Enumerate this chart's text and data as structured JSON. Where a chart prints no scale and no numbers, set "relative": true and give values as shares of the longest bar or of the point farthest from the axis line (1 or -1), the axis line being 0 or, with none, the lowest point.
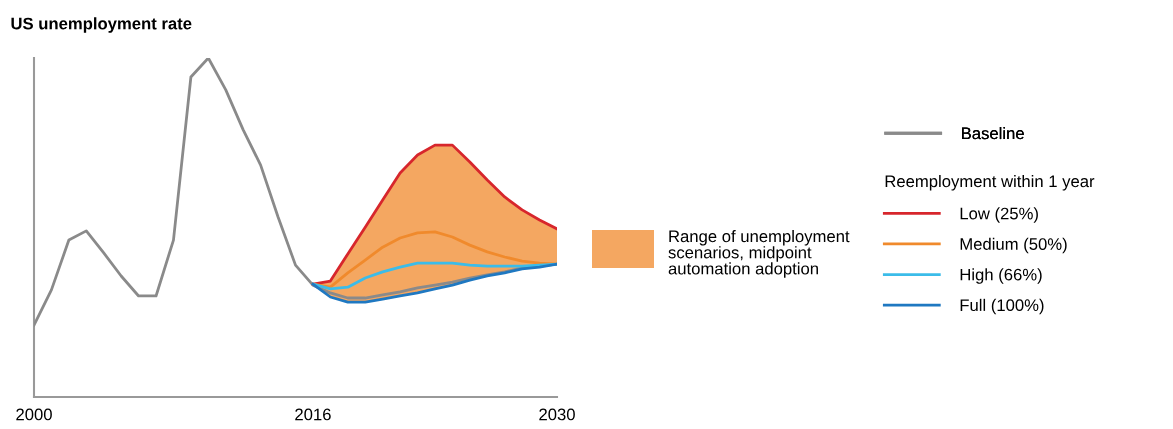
{
  "chart_data": {
    "type": "line",
    "title": "US unemployment rate",
    "relative": true,
    "xlim": [
      2000,
      2030
    ],
    "xticks": [
      2000,
      2016,
      2030
    ],
    "grid": false,
    "legend": "right",
    "marker": "none",
    "line_style": "solid",
    "legend_title": "Reemployment within 1 year",
    "annotations": [
      "Range of unemployment scenarios, midpoint automation adoption"
    ],
    "series": [
      {
        "name": "Baseline",
        "color": "#8a8a8a",
        "x": [
          2000,
          2001,
          2002,
          2003,
          2004,
          2005,
          2006,
          2007,
          2008,
          2009,
          2010,
          2011,
          2012,
          2013,
          2014,
          2015,
          2016,
          2017,
          2018,
          2019,
          2020,
          2021,
          2022,
          2023,
          2024,
          2025,
          2026,
          2027,
          2028,
          2029,
          2030
        ],
        "values": [
          0.212,
          0.316,
          0.463,
          0.49,
          0.425,
          0.357,
          0.298,
          0.298,
          0.463,
          0.944,
          1.0,
          0.906,
          0.788,
          0.684,
          0.531,
          0.389,
          0.33,
          0.307,
          0.292,
          0.292,
          0.301,
          0.31,
          0.322,
          0.33,
          0.339,
          0.351,
          0.36,
          0.369,
          0.381,
          0.386,
          0.392
        ]
      },
      {
        "name": "Low (25%)",
        "color": "#d7262c",
        "x": [
          2016,
          2017,
          2018,
          2019,
          2020,
          2021,
          2022,
          2023,
          2024,
          2025,
          2026,
          2027,
          2028,
          2029,
          2030
        ],
        "values": [
          0.333,
          0.342,
          0.422,
          0.501,
          0.581,
          0.661,
          0.714,
          0.743,
          0.743,
          0.693,
          0.64,
          0.59,
          0.552,
          0.522,
          0.496
        ]
      },
      {
        "name": "Medium (50%)",
        "color": "#f08a2c",
        "x": [
          2016,
          2017,
          2018,
          2019,
          2020,
          2021,
          2022,
          2023,
          2024,
          2025,
          2026,
          2027,
          2028,
          2029,
          2030
        ],
        "values": [
          0.333,
          0.324,
          0.366,
          0.404,
          0.442,
          0.469,
          0.484,
          0.487,
          0.472,
          0.448,
          0.428,
          0.413,
          0.401,
          0.395,
          0.392
        ],
        "lower": [
          0.333,
          0.295,
          0.28,
          0.28,
          0.289,
          0.298,
          0.307,
          0.319,
          0.33,
          0.345,
          0.357,
          0.366,
          0.378,
          0.383,
          0.392
        ],
        "upper": [
          0.333,
          0.342,
          0.422,
          0.501,
          0.581,
          0.661,
          0.714,
          0.743,
          0.743,
          0.693,
          0.64,
          0.59,
          0.552,
          0.522,
          0.496
        ]
      },
      {
        "name": "High (66%)",
        "color": "#3bbce9",
        "x": [
          2016,
          2017,
          2018,
          2019,
          2020,
          2021,
          2022,
          2023,
          2024,
          2025,
          2026,
          2027,
          2028,
          2029,
          2030
        ],
        "values": [
          0.333,
          0.319,
          0.324,
          0.351,
          0.369,
          0.383,
          0.395,
          0.395,
          0.395,
          0.389,
          0.386,
          0.386,
          0.386,
          0.389,
          0.392
        ]
      },
      {
        "name": "Full (100%)",
        "color": "#1f78c1",
        "x": [
          2016,
          2017,
          2018,
          2019,
          2020,
          2021,
          2022,
          2023,
          2024,
          2025,
          2026,
          2027,
          2028,
          2029,
          2030
        ],
        "values": [
          0.333,
          0.295,
          0.28,
          0.28,
          0.289,
          0.298,
          0.307,
          0.319,
          0.33,
          0.345,
          0.357,
          0.366,
          0.378,
          0.383,
          0.392
        ]
      }
    ]
  }
}
